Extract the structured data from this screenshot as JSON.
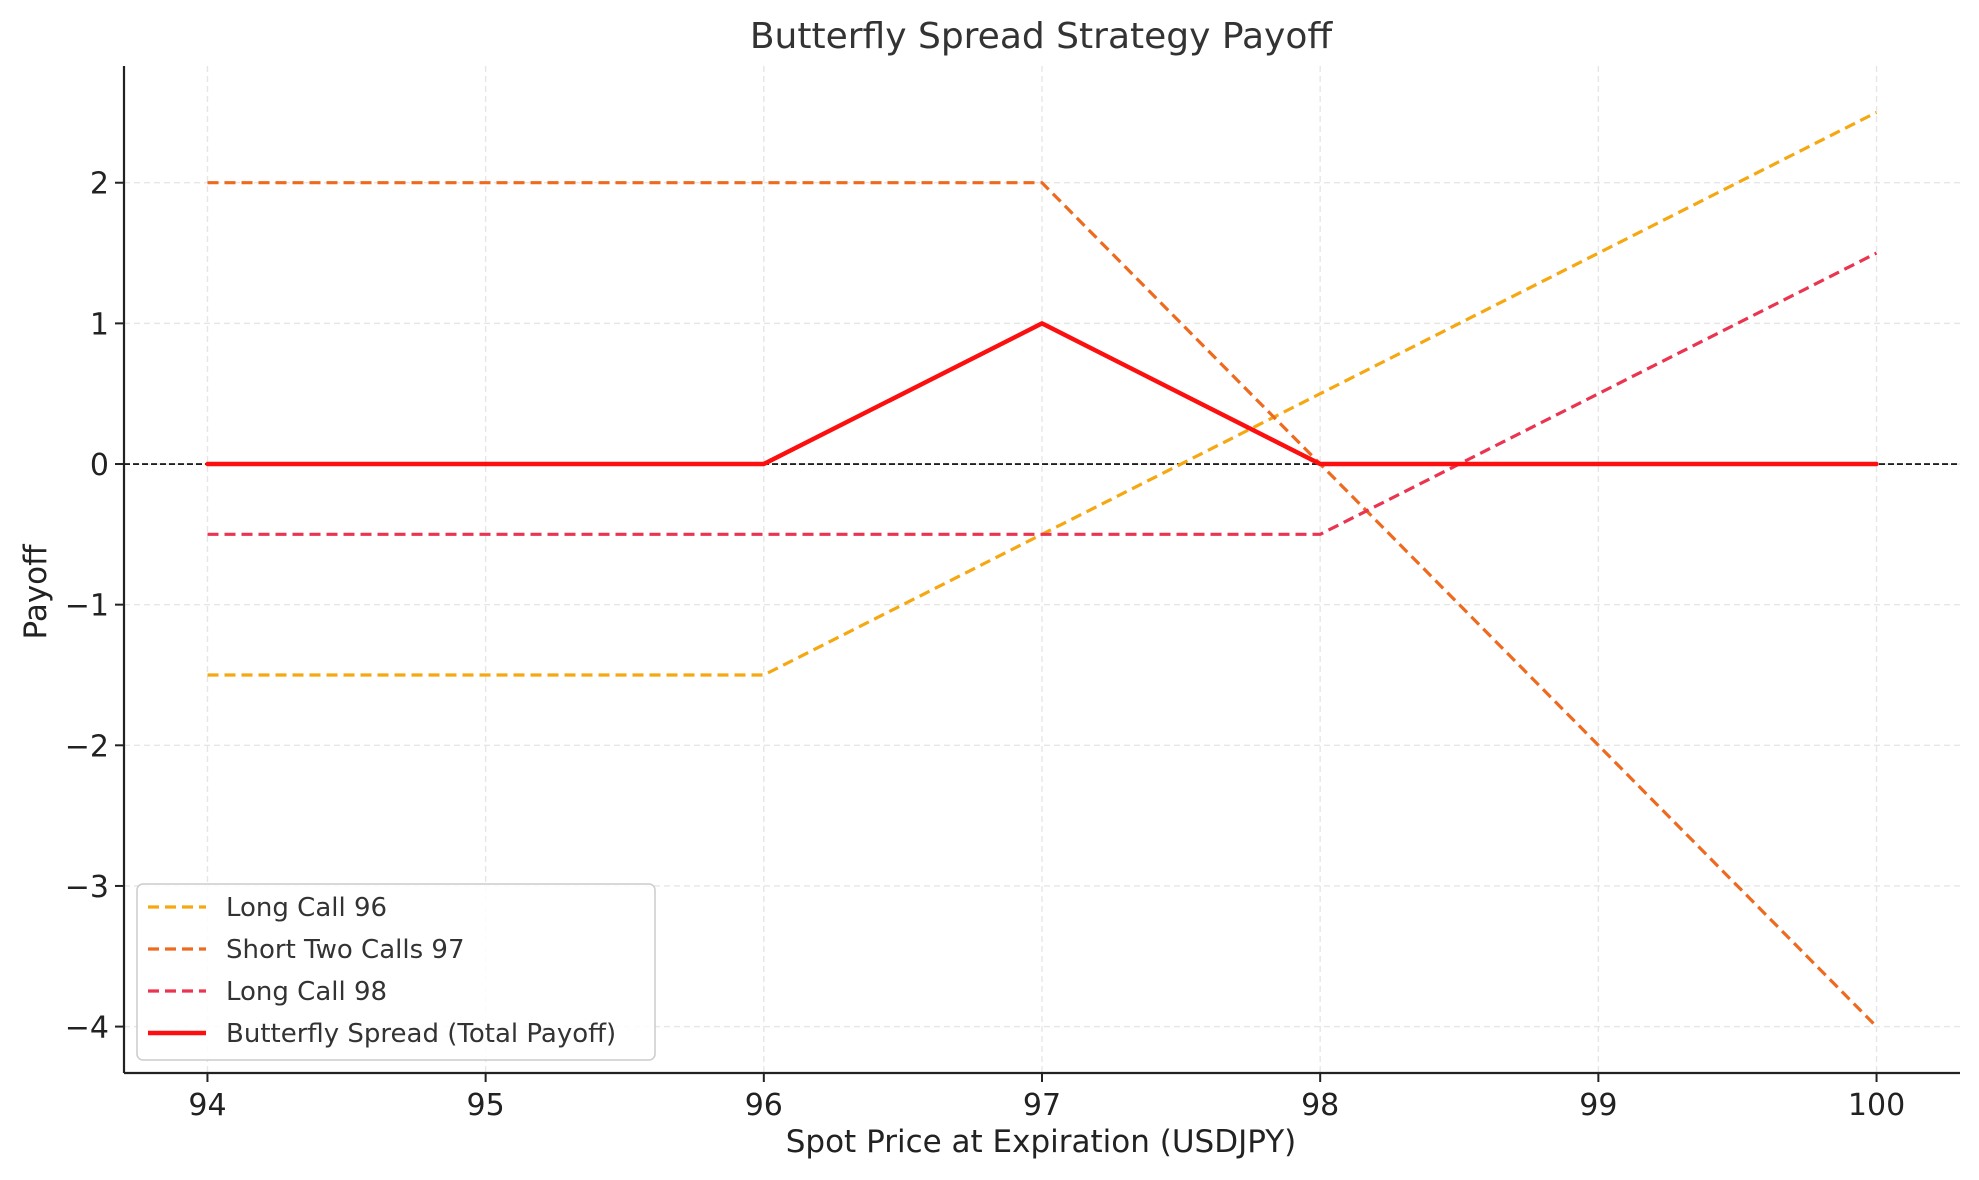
{
  "chart_data": {
    "type": "line",
    "title": "Butterfly Spread Strategy Payoff",
    "xlabel": "Spot Price at Expiration (USDJPY)",
    "ylabel": "Payoff",
    "xlim": [
      93.7,
      100.3
    ],
    "ylim": [
      -4.33,
      2.83
    ],
    "xticks": [
      94,
      95,
      96,
      97,
      98,
      99,
      100
    ],
    "xtick_labels": [
      "94",
      "95",
      "96",
      "97",
      "98",
      "99",
      "100"
    ],
    "yticks": [
      -4,
      -3,
      -2,
      -1,
      0,
      1,
      2
    ],
    "ytick_labels": [
      "−4",
      "−3",
      "−2",
      "−1",
      "0",
      "1",
      "2"
    ],
    "grid": true,
    "legend_position": "lower-left",
    "zero_line": {
      "y": 0,
      "color": "#000000",
      "style": "dashed"
    },
    "x": [
      94,
      95,
      96,
      97,
      98,
      99,
      100
    ],
    "series": [
      {
        "name": "Long Call 96",
        "values": [
          -1.5,
          -1.5,
          -1.5,
          -0.5,
          0.5,
          1.5,
          2.5
        ],
        "color": "#f5a811",
        "style": "dashed"
      },
      {
        "name": "Short Two Calls 97",
        "values": [
          2,
          2,
          2,
          2,
          0,
          -2,
          -4
        ],
        "color": "#ee6a1f",
        "style": "dashed"
      },
      {
        "name": "Long Call 98",
        "values": [
          -0.5,
          -0.5,
          -0.5,
          -0.5,
          -0.5,
          0.5,
          1.5
        ],
        "color": "#ea3450",
        "style": "dashed"
      },
      {
        "name": "Butterfly Spread (Total Payoff)",
        "values": [
          0,
          0,
          0,
          1,
          0,
          0,
          0
        ],
        "color": "#fb0f0f",
        "style": "solid"
      }
    ]
  }
}
